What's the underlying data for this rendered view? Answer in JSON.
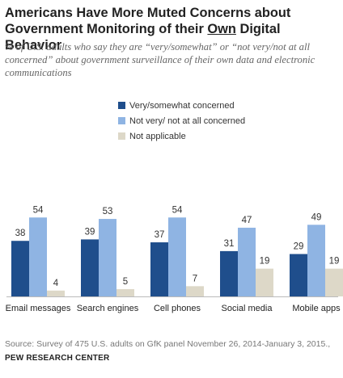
{
  "header": {
    "title_line1": "Americans Have More Muted Concerns about",
    "title_line2_pre": "Government Monitoring of their ",
    "title_line2_underlined": "Own",
    "title_line2_post": " Digital Behavior",
    "subtitle": "% of U.S. adults who say they are  “very/somewhat” or “not very/not at all concerned” about government surveillance of their own data and electronic communications"
  },
  "footer": {
    "source": "Source:  Survey of 475 U.S. adults on GfK panel November 26, 2014-January 3, 2015.,",
    "organization": "PEW RESEARCH CENTER"
  },
  "chart_data": {
    "type": "bar",
    "categories": [
      "Email messages",
      "Search engines",
      "Cell phones",
      "Social media",
      "Mobile apps"
    ],
    "series": [
      {
        "name": "Very/somewhat concerned",
        "values": [
          38,
          39,
          37,
          31,
          29
        ],
        "color": "#1f4e8c"
      },
      {
        "name": "Not very/ not at all concerned",
        "values": [
          54,
          53,
          54,
          47,
          49
        ],
        "color": "#8fb4e3"
      },
      {
        "name": "Not applicable",
        "values": [
          4,
          5,
          7,
          19,
          19
        ],
        "color": "#ddd8c8"
      }
    ],
    "legend_position": "top-center",
    "grid": false
  }
}
